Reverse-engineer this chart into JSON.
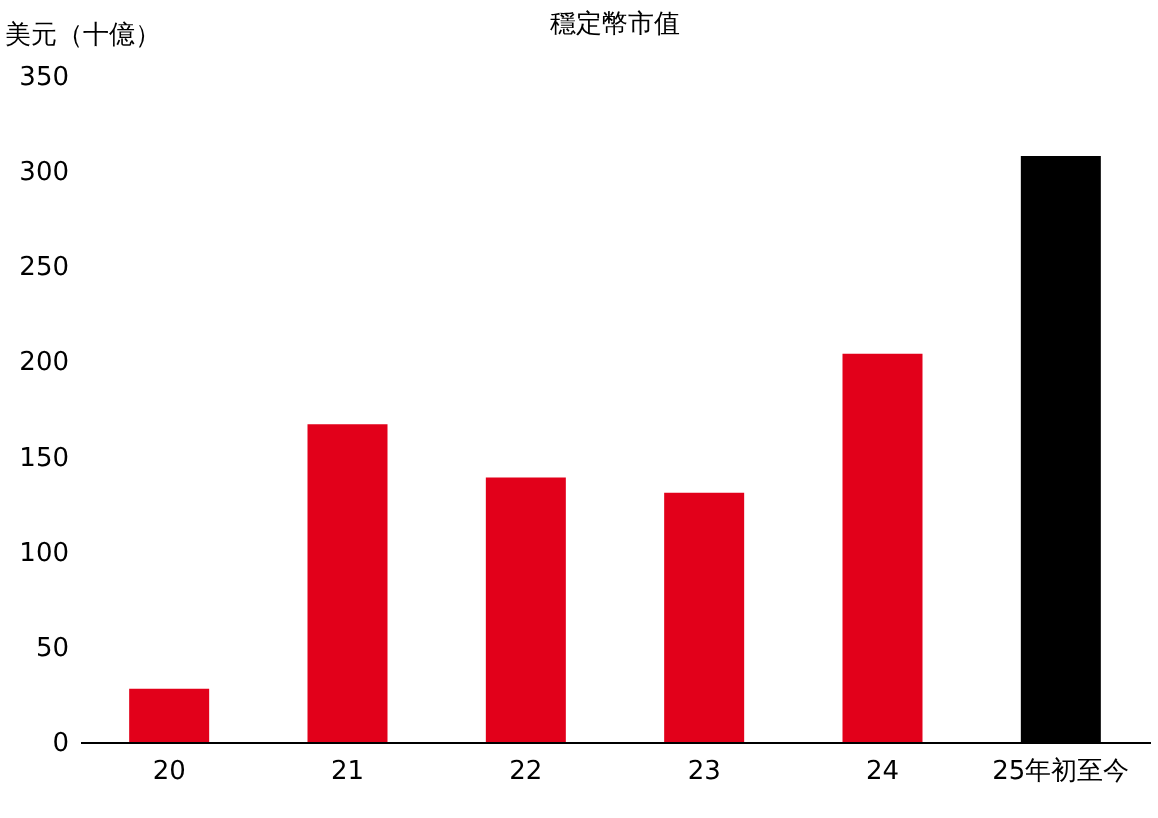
{
  "chart_data": {
    "type": "bar",
    "title": "穩定幣市值",
    "ylabel": "美元（十億）",
    "categories": [
      "20",
      "21",
      "22",
      "23",
      "24",
      "25年初至今"
    ],
    "values": [
      28,
      167,
      139,
      131,
      204,
      308
    ],
    "colors": [
      "#e2001a",
      "#e2001a",
      "#e2001a",
      "#e2001a",
      "#e2001a",
      "#000000"
    ],
    "ylim": [
      0,
      350
    ],
    "yticks": [
      0,
      50,
      100,
      150,
      200,
      250,
      300,
      350
    ],
    "grid": false
  }
}
